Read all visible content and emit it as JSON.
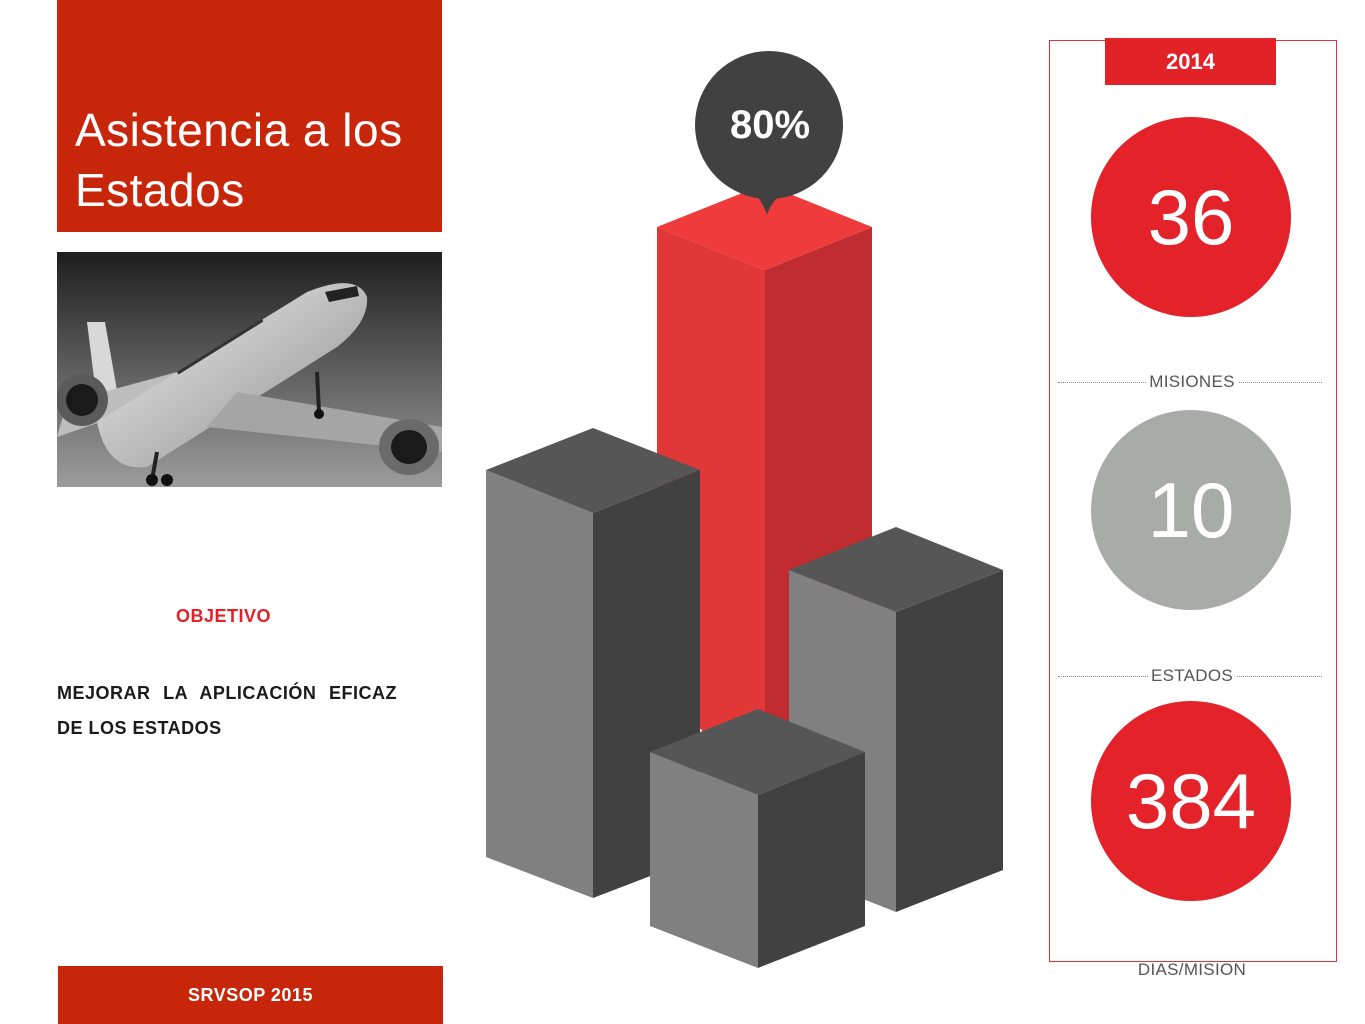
{
  "header": {
    "title": "Asistencia a los Estados"
  },
  "objective": {
    "label": "OBJETIVO",
    "text": "MEJORAR LA APLICACIÓN EFICAZ DE LOS ESTADOS"
  },
  "footer": {
    "label": "SRVSOP 2015"
  },
  "chart_data": {
    "type": "bar",
    "annotation": "80%",
    "highlight_color": "#e42229",
    "neutral_color": "#808080"
  },
  "stats": {
    "year": "2014",
    "items": [
      {
        "value": "36",
        "label": "MISIONES",
        "color": "#e42229"
      },
      {
        "value": "10",
        "label": "ESTADOS",
        "color": "#a9aba9"
      },
      {
        "value": "384",
        "label": "DIAS/MISION",
        "color": "#e42229"
      }
    ]
  },
  "colors": {
    "brand_red": "#c8260b",
    "accent_red": "#e32227",
    "gray": "#a9aba9"
  },
  "icons": {
    "photo": "airplane-photo"
  }
}
